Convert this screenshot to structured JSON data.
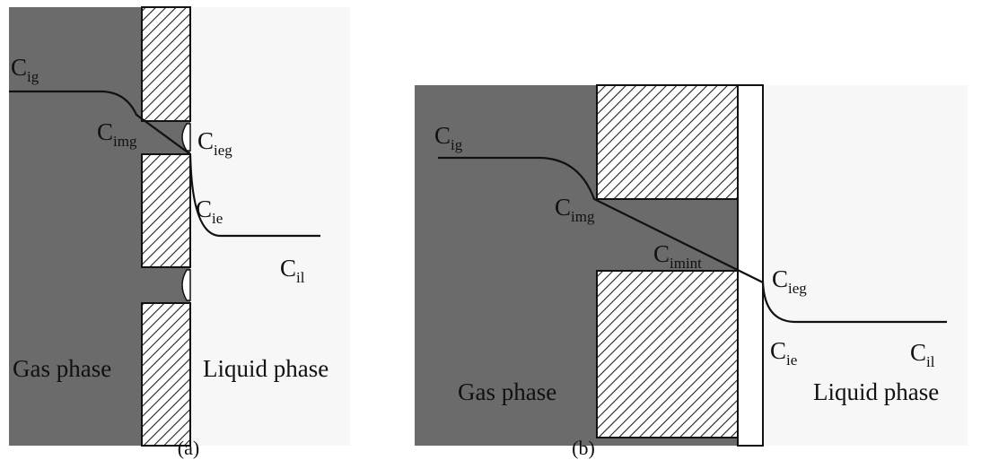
{
  "panel_a": {
    "caption": "(a)",
    "gas_label": "Gas phase",
    "liquid_label": "Liquid phase",
    "concentrations": [
      {
        "symbol": "C",
        "subscript": "ig"
      },
      {
        "symbol": "C",
        "subscript": "img"
      },
      {
        "symbol": "C",
        "subscript": "ieg"
      },
      {
        "symbol": "C",
        "subscript": "ie"
      },
      {
        "symbol": "C",
        "subscript": "il"
      }
    ]
  },
  "panel_b": {
    "caption": "(b)",
    "gas_label": "Gas phase",
    "liquid_label": "Liquid phase",
    "concentrations": [
      {
        "symbol": "C",
        "subscript": "ig"
      },
      {
        "symbol": "C",
        "subscript": "img"
      },
      {
        "symbol": "C",
        "subscript": "imint"
      },
      {
        "symbol": "C",
        "subscript": "ieg"
      },
      {
        "symbol": "C",
        "subscript": "ie"
      },
      {
        "symbol": "C",
        "subscript": "il"
      }
    ]
  }
}
